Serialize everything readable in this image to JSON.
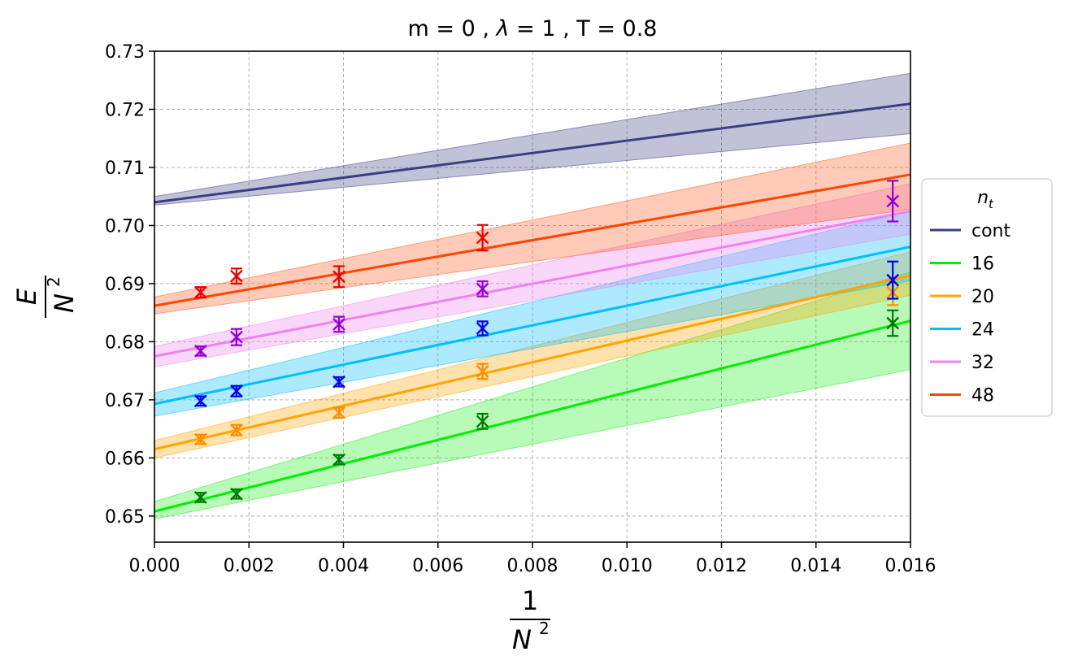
{
  "chart_data": {
    "type": "line",
    "title_parts": {
      "m_label": "m = 0 , ",
      "lambda_symbol": "λ",
      "lambda_value": " = 1 , T = 0.8"
    },
    "xlabel": {
      "numerator": "1",
      "denominator": "N",
      "exponent": "2"
    },
    "ylabel": {
      "numerator": "E",
      "denominator": "N",
      "exponent": "2"
    },
    "xlim": [
      0.0,
      0.016
    ],
    "ylim": [
      0.6455,
      0.73
    ],
    "xticks": [
      0.0,
      0.002,
      0.004,
      0.006,
      0.008,
      0.01,
      0.012,
      0.014,
      0.016
    ],
    "xtick_labels": [
      "0.000",
      "0.002",
      "0.004",
      "0.006",
      "0.008",
      "0.010",
      "0.012",
      "0.014",
      "0.016"
    ],
    "yticks": [
      0.65,
      0.66,
      0.67,
      0.68,
      0.69,
      0.7,
      0.71,
      0.72,
      0.73
    ],
    "ytick_labels": [
      "0.65",
      "0.66",
      "0.67",
      "0.68",
      "0.69",
      "0.70",
      "0.71",
      "0.72",
      "0.73"
    ],
    "grid": true,
    "legend": {
      "title_main": "n",
      "title_sub": "t",
      "placement": "outside-right"
    },
    "series": [
      {
        "name": "cont",
        "line_color": "#3d3d84",
        "band_color": "#3d3d84",
        "marker_color": "",
        "fit": {
          "intercept": 0.704,
          "slope": 1.06
        },
        "band": {
          "lower": [
            0.7035,
            0.7158
          ],
          "upper": [
            0.705,
            0.7262
          ]
        },
        "points": []
      },
      {
        "name": "16",
        "line_color": "#00ee00",
        "band_color": "#22ee22",
        "marker_color": "#007a00",
        "fit": {
          "intercept": 0.6508,
          "slope": 2.05
        },
        "band": {
          "lower": [
            0.6495,
            0.6752
          ],
          "upper": [
            0.6525,
            0.692
          ]
        },
        "points": [
          {
            "x": 0.000977,
            "y": 0.6532,
            "err": 0.0008
          },
          {
            "x": 0.001736,
            "y": 0.6538,
            "err": 0.0008
          },
          {
            "x": 0.003906,
            "y": 0.6597,
            "err": 0.0008
          },
          {
            "x": 0.006944,
            "y": 0.6663,
            "err": 0.0013
          },
          {
            "x": 0.015625,
            "y": 0.6832,
            "err": 0.0022
          }
        ]
      },
      {
        "name": "20",
        "line_color": "#ffa500",
        "band_color": "#ffa500",
        "marker_color": "#ff8c00",
        "fit": {
          "intercept": 0.6615,
          "slope": 1.87
        },
        "band": {
          "lower": [
            0.66,
            0.688
          ],
          "upper": [
            0.663,
            0.6955
          ]
        },
        "points": [
          {
            "x": 0.000977,
            "y": 0.6632,
            "err": 0.0008
          },
          {
            "x": 0.001736,
            "y": 0.6648,
            "err": 0.0009
          },
          {
            "x": 0.003906,
            "y": 0.6678,
            "err": 0.0009
          },
          {
            "x": 0.006944,
            "y": 0.6749,
            "err": 0.0013
          },
          {
            "x": 0.015625,
            "y": 0.6885,
            "err": 0.0022
          }
        ]
      },
      {
        "name": "24",
        "line_color": "#00bfff",
        "band_color": "#00bfff",
        "marker_color": "#0000ee",
        "fit": {
          "intercept": 0.6693,
          "slope": 1.69
        },
        "band": {
          "lower": [
            0.6672,
            0.6905
          ],
          "upper": [
            0.6712,
            0.7025
          ]
        },
        "points": [
          {
            "x": 0.000977,
            "y": 0.6698,
            "err": 0.0008
          },
          {
            "x": 0.001736,
            "y": 0.6715,
            "err": 0.0009
          },
          {
            "x": 0.003906,
            "y": 0.6731,
            "err": 0.0008
          },
          {
            "x": 0.006944,
            "y": 0.6823,
            "err": 0.0012
          },
          {
            "x": 0.015625,
            "y": 0.6906,
            "err": 0.0032
          }
        ]
      },
      {
        "name": "32",
        "line_color": "#ee82ee",
        "band_color": "#ee82ee",
        "marker_color": "#9400d3",
        "fit": {
          "intercept": 0.6775,
          "slope": 1.56
        },
        "band": {
          "lower": [
            0.6757,
            0.6985
          ],
          "upper": [
            0.6792,
            0.7072
          ]
        },
        "points": [
          {
            "x": 0.000977,
            "y": 0.6784,
            "err": 0.0008
          },
          {
            "x": 0.001736,
            "y": 0.6808,
            "err": 0.0014
          },
          {
            "x": 0.003906,
            "y": 0.683,
            "err": 0.0013
          },
          {
            "x": 0.006944,
            "y": 0.6891,
            "err": 0.0013
          },
          {
            "x": 0.015625,
            "y": 0.7042,
            "err": 0.0035
          }
        ]
      },
      {
        "name": "48",
        "line_color": "#ff4500",
        "band_color": "#ff5a1e",
        "marker_color": "#ee0000",
        "fit": {
          "intercept": 0.6862,
          "slope": 1.41
        },
        "band": {
          "lower": [
            0.6848,
            0.7028
          ],
          "upper": [
            0.6877,
            0.7142
          ]
        },
        "points": [
          {
            "x": 0.000977,
            "y": 0.6885,
            "err": 0.0009
          },
          {
            "x": 0.001736,
            "y": 0.6913,
            "err": 0.0013
          },
          {
            "x": 0.003906,
            "y": 0.6912,
            "err": 0.0018
          },
          {
            "x": 0.006944,
            "y": 0.6979,
            "err": 0.0022
          },
          {
            "x": 0.015625,
            "y": null,
            "err": null
          }
        ]
      }
    ]
  }
}
